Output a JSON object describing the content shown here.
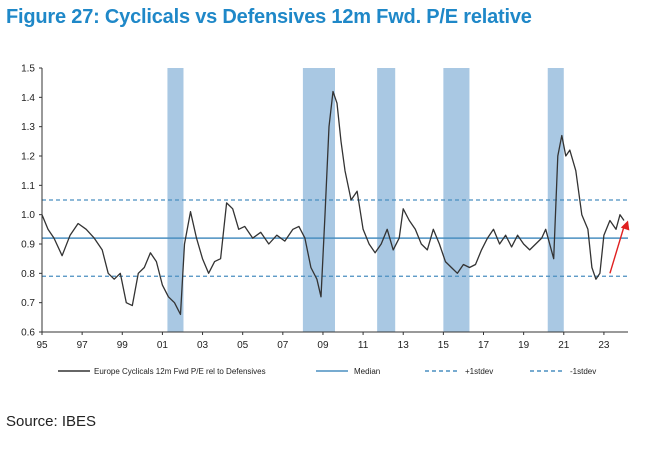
{
  "figure_title": "Figure 27: Cyclicals vs Defensives 12m Fwd. P/E relative",
  "source": "Source: IBES",
  "chart_data": {
    "type": "line",
    "title": "Figure 27: Cyclicals vs Defensives 12m Fwd. P/E relative",
    "xlim": [
      1995,
      2024.2
    ],
    "ylim": [
      0.6,
      1.5
    ],
    "x_ticks": [
      {
        "value": 1995,
        "label": "95"
      },
      {
        "value": 1997,
        "label": "97"
      },
      {
        "value": 1999,
        "label": "99"
      },
      {
        "value": 2001,
        "label": "01"
      },
      {
        "value": 2003,
        "label": "03"
      },
      {
        "value": 2005,
        "label": "05"
      },
      {
        "value": 2007,
        "label": "07"
      },
      {
        "value": 2009,
        "label": "09"
      },
      {
        "value": 2011,
        "label": "11"
      },
      {
        "value": 2013,
        "label": "13"
      },
      {
        "value": 2015,
        "label": "15"
      },
      {
        "value": 2017,
        "label": "17"
      },
      {
        "value": 2019,
        "label": "19"
      },
      {
        "value": 2021,
        "label": "21"
      },
      {
        "value": 2023,
        "label": "23"
      }
    ],
    "y_ticks": [
      0.6,
      0.7,
      0.8,
      0.9,
      1.0,
      1.1,
      1.2,
      1.3,
      1.4,
      1.5
    ],
    "recession_bands": [
      [
        2001.25,
        2002.05
      ],
      [
        2008.0,
        2009.6
      ],
      [
        2011.7,
        2012.6
      ],
      [
        2015.0,
        2016.3
      ],
      [
        2020.2,
        2021.0
      ]
    ],
    "median": 0.92,
    "plus_1_stdev": 1.05,
    "minus_1_stdev": 0.79,
    "arrow": {
      "from": [
        2023.3,
        0.8
      ],
      "to": [
        2024.2,
        0.98
      ]
    },
    "colors": {
      "line": "#333333",
      "median": "#4a8fc0",
      "stdev": "#4a8fc0",
      "band": "#a9c8e3",
      "arrow": "#e02020"
    },
    "legend": [
      "Europe Cyclicals 12m Fwd P/E rel to Defensives",
      "Median",
      "+1stdev",
      "-1stdev"
    ],
    "series": [
      {
        "name": "Europe Cyclicals 12m Fwd P/E rel to Defensives",
        "x": [
          1995.0,
          1995.3,
          1995.6,
          1996.0,
          1996.4,
          1996.8,
          1997.2,
          1997.6,
          1998.0,
          1998.3,
          1998.6,
          1998.9,
          1999.2,
          1999.5,
          1999.8,
          2000.1,
          2000.4,
          2000.7,
          2001.0,
          2001.3,
          2001.6,
          2001.9,
          2002.1,
          2002.4,
          2002.7,
          2003.0,
          2003.3,
          2003.6,
          2003.9,
          2004.2,
          2004.5,
          2004.8,
          2005.1,
          2005.5,
          2005.9,
          2006.3,
          2006.7,
          2007.1,
          2007.5,
          2007.8,
          2008.1,
          2008.4,
          2008.7,
          2008.9,
          2009.1,
          2009.3,
          2009.5,
          2009.7,
          2009.9,
          2010.1,
          2010.4,
          2010.7,
          2011.0,
          2011.3,
          2011.6,
          2011.9,
          2012.2,
          2012.5,
          2012.8,
          2013.0,
          2013.3,
          2013.6,
          2013.9,
          2014.2,
          2014.5,
          2014.8,
          2015.1,
          2015.4,
          2015.7,
          2016.0,
          2016.3,
          2016.6,
          2016.9,
          2017.2,
          2017.5,
          2017.8,
          2018.1,
          2018.4,
          2018.7,
          2019.0,
          2019.3,
          2019.6,
          2019.9,
          2020.1,
          2020.3,
          2020.5,
          2020.7,
          2020.9,
          2021.1,
          2021.3,
          2021.6,
          2021.9,
          2022.2,
          2022.4,
          2022.6,
          2022.8,
          2023.0,
          2023.3,
          2023.6,
          2023.8,
          2024.0
        ],
        "y": [
          1.0,
          0.95,
          0.92,
          0.86,
          0.93,
          0.97,
          0.95,
          0.92,
          0.88,
          0.8,
          0.78,
          0.8,
          0.7,
          0.69,
          0.8,
          0.82,
          0.87,
          0.84,
          0.76,
          0.72,
          0.7,
          0.66,
          0.9,
          1.01,
          0.92,
          0.85,
          0.8,
          0.84,
          0.85,
          1.04,
          1.02,
          0.95,
          0.96,
          0.92,
          0.94,
          0.9,
          0.93,
          0.91,
          0.95,
          0.96,
          0.92,
          0.82,
          0.78,
          0.72,
          1.0,
          1.3,
          1.42,
          1.38,
          1.25,
          1.15,
          1.05,
          1.08,
          0.95,
          0.9,
          0.87,
          0.9,
          0.95,
          0.88,
          0.92,
          1.02,
          0.98,
          0.95,
          0.9,
          0.88,
          0.95,
          0.9,
          0.84,
          0.82,
          0.8,
          0.83,
          0.82,
          0.83,
          0.88,
          0.92,
          0.95,
          0.9,
          0.93,
          0.89,
          0.93,
          0.9,
          0.88,
          0.9,
          0.92,
          0.95,
          0.9,
          0.85,
          1.2,
          1.27,
          1.2,
          1.22,
          1.15,
          1.0,
          0.95,
          0.82,
          0.78,
          0.8,
          0.93,
          0.98,
          0.95,
          1.0,
          0.98
        ]
      }
    ]
  }
}
